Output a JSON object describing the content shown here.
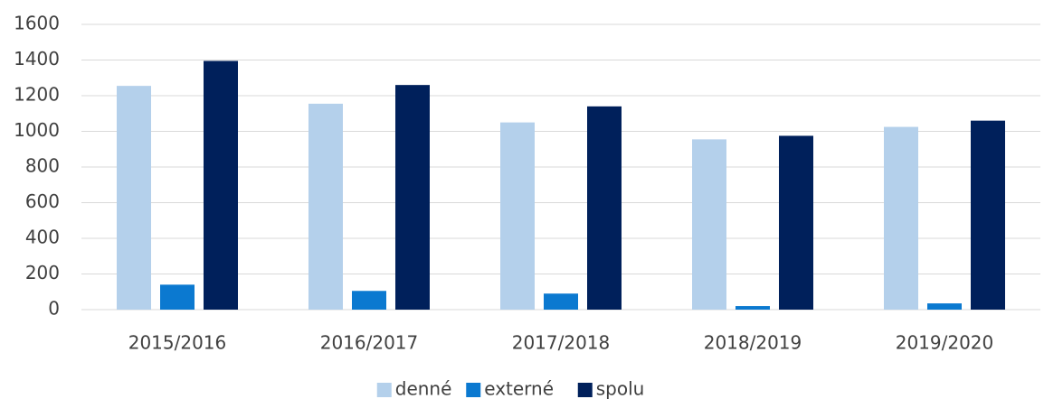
{
  "chart_data": {
    "type": "bar",
    "categories": [
      "2015/2016",
      "2016/2017",
      "2017/2018",
      "2018/2019",
      "2019/2020"
    ],
    "series": [
      {
        "name": "denné",
        "color": "#b4d0eb",
        "values": [
          1255,
          1155,
          1050,
          955,
          1025
        ]
      },
      {
        "name": "externé",
        "color": "#0b79d0",
        "values": [
          140,
          105,
          90,
          20,
          35
        ]
      },
      {
        "name": "spolu",
        "color": "#00205b",
        "values": [
          1395,
          1260,
          1140,
          975,
          1060
        ]
      }
    ],
    "ylim": [
      0,
      1600
    ],
    "yticks": [
      0,
      200,
      400,
      600,
      800,
      1000,
      1200,
      1400,
      1600
    ],
    "grid": true,
    "legend": "bottom"
  }
}
